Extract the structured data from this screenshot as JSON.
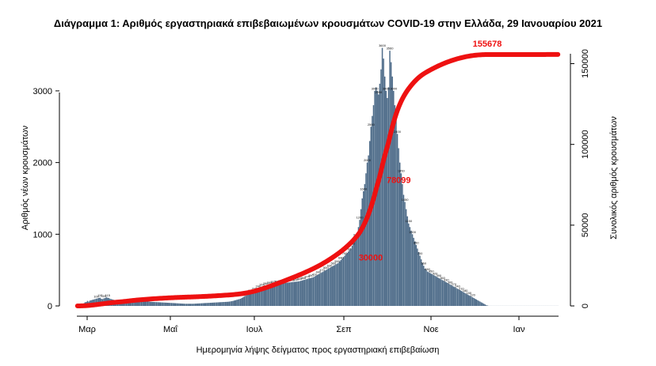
{
  "chart_data": {
    "type": "bar",
    "title": "Διάγραμμα 1: Αριθμός εργαστηριακά επιβεβαιωμένων κρουσμάτων COVID-19 στην Ελλάδα, 29 Ιανουαρίου 2021",
    "xlabel": "Ημερομηνία λήψης δείγματος προς εργαστηριακή επιβεβαίωση",
    "ylabel_left": "Αριθμός νέων κρουσμάτων",
    "ylabel_right": "Συνολικός αριθμός κρουσμάτων",
    "ylim_left": [
      0,
      3650
    ],
    "ylim_right": [
      0,
      162000
    ],
    "x_ticks": [
      "Μαρ",
      "Μαΐ",
      "Ιουλ",
      "Σεπ",
      "Νοε",
      "Ιαν"
    ],
    "y_ticks_left": [
      "0",
      "1000",
      "2000",
      "3000"
    ],
    "y_ticks_right": [
      "0",
      "50000",
      "100000",
      "150000"
    ],
    "bar_color": "#4f6d8a",
    "line_color": "#ee1111",
    "grid": false,
    "series": [
      {
        "kind": "bar",
        "axis": "left",
        "daily_values": [
          6,
          12,
          10,
          18,
          25,
          35,
          50,
          55,
          70,
          60,
          75,
          80,
          85,
          90,
          95,
          100,
          105,
          110,
          115,
          100,
          95,
          105,
          110,
          120,
          115,
          110,
          100,
          95,
          90,
          85,
          80,
          75,
          70,
          72,
          78,
          80,
          82,
          85,
          88,
          90,
          92,
          95,
          98,
          100,
          95,
          90,
          85,
          80,
          78,
          76,
          74,
          72,
          70,
          68,
          66,
          64,
          62,
          60,
          58,
          57,
          56,
          55,
          54,
          53,
          52,
          51,
          50,
          49,
          48,
          47,
          46,
          45,
          44,
          43,
          42,
          41,
          40,
          39,
          38,
          37,
          36,
          35,
          34,
          33,
          32,
          31,
          30,
          30,
          30,
          30,
          30,
          30,
          30,
          31,
          32,
          33,
          34,
          35,
          36,
          37,
          38,
          39,
          40,
          41,
          42,
          43,
          44,
          45,
          46,
          47,
          48,
          49,
          50,
          51,
          52,
          53,
          54,
          55,
          56,
          57,
          58,
          60,
          63,
          66,
          70,
          75,
          80,
          85,
          90,
          95,
          100,
          110,
          120,
          130,
          140,
          150,
          160,
          170,
          180,
          190,
          200,
          210,
          220,
          230,
          240,
          250,
          258,
          265,
          270,
          275,
          280,
          285,
          290,
          295,
          298,
          300,
          302,
          304,
          306,
          308,
          310,
          312,
          314,
          316,
          318,
          320,
          322,
          324,
          326,
          328,
          330,
          332,
          334,
          336,
          338,
          340,
          342,
          345,
          350,
          355,
          360,
          365,
          370,
          375,
          380,
          385,
          390,
          395,
          400,
          410,
          420,
          430,
          440,
          450,
          460,
          470,
          480,
          490,
          500,
          510,
          520,
          530,
          540,
          550,
          560,
          570,
          580,
          590,
          600,
          620,
          640,
          660,
          680,
          700,
          720,
          740,
          760,
          780,
          800,
          840,
          880,
          920,
          960,
          1000,
          1100,
          1200,
          1350,
          1500,
          1600,
          1700,
          1850,
          2000,
          2100,
          2300,
          2500,
          2650,
          2800,
          3000,
          3050,
          3000,
          2950,
          3100,
          3300,
          3600,
          3450,
          3200,
          3000,
          2900,
          3050,
          3560,
          3400,
          3200,
          3000,
          2800,
          2600,
          2400,
          2200,
          2000,
          1850,
          1700,
          1550,
          1450,
          1350,
          1250,
          1150,
          1100,
          1050,
          1000,
          950,
          900,
          850,
          800,
          750,
          700,
          650,
          600,
          560,
          520,
          500,
          480,
          470,
          460,
          450,
          440,
          430,
          420,
          410,
          400,
          390,
          380,
          370,
          360,
          350,
          340,
          330,
          320,
          310,
          300,
          290,
          280,
          270,
          260,
          250,
          240,
          230,
          220,
          210,
          200,
          190,
          180,
          170,
          160,
          150,
          140,
          130,
          120,
          110,
          100,
          90,
          80,
          70,
          60,
          50,
          40,
          30,
          20,
          10,
          5,
          1,
          1,
          1,
          1,
          1,
          1,
          1,
          1,
          1,
          1,
          1,
          1,
          1,
          1,
          1,
          1,
          1,
          1,
          1,
          1,
          1,
          1,
          1,
          1,
          1,
          1,
          1,
          1,
          1,
          1,
          1,
          1,
          1,
          1,
          1,
          1,
          1,
          1,
          1,
          1,
          1,
          1,
          1,
          1,
          1,
          1,
          1,
          1,
          1,
          1,
          1,
          1,
          1,
          1,
          1,
          1
        ]
      },
      {
        "kind": "line",
        "axis": "right",
        "cumulative_end": 155678
      }
    ],
    "annotations": [
      {
        "text": "155678",
        "x_index": 337,
        "axis": "right",
        "value": 155678
      },
      {
        "text": "78099",
        "x_index": 267,
        "axis": "right",
        "value": 78099
      },
      {
        "text": "30000",
        "x_index": 246,
        "axis": "right",
        "value": 30000
      }
    ]
  }
}
